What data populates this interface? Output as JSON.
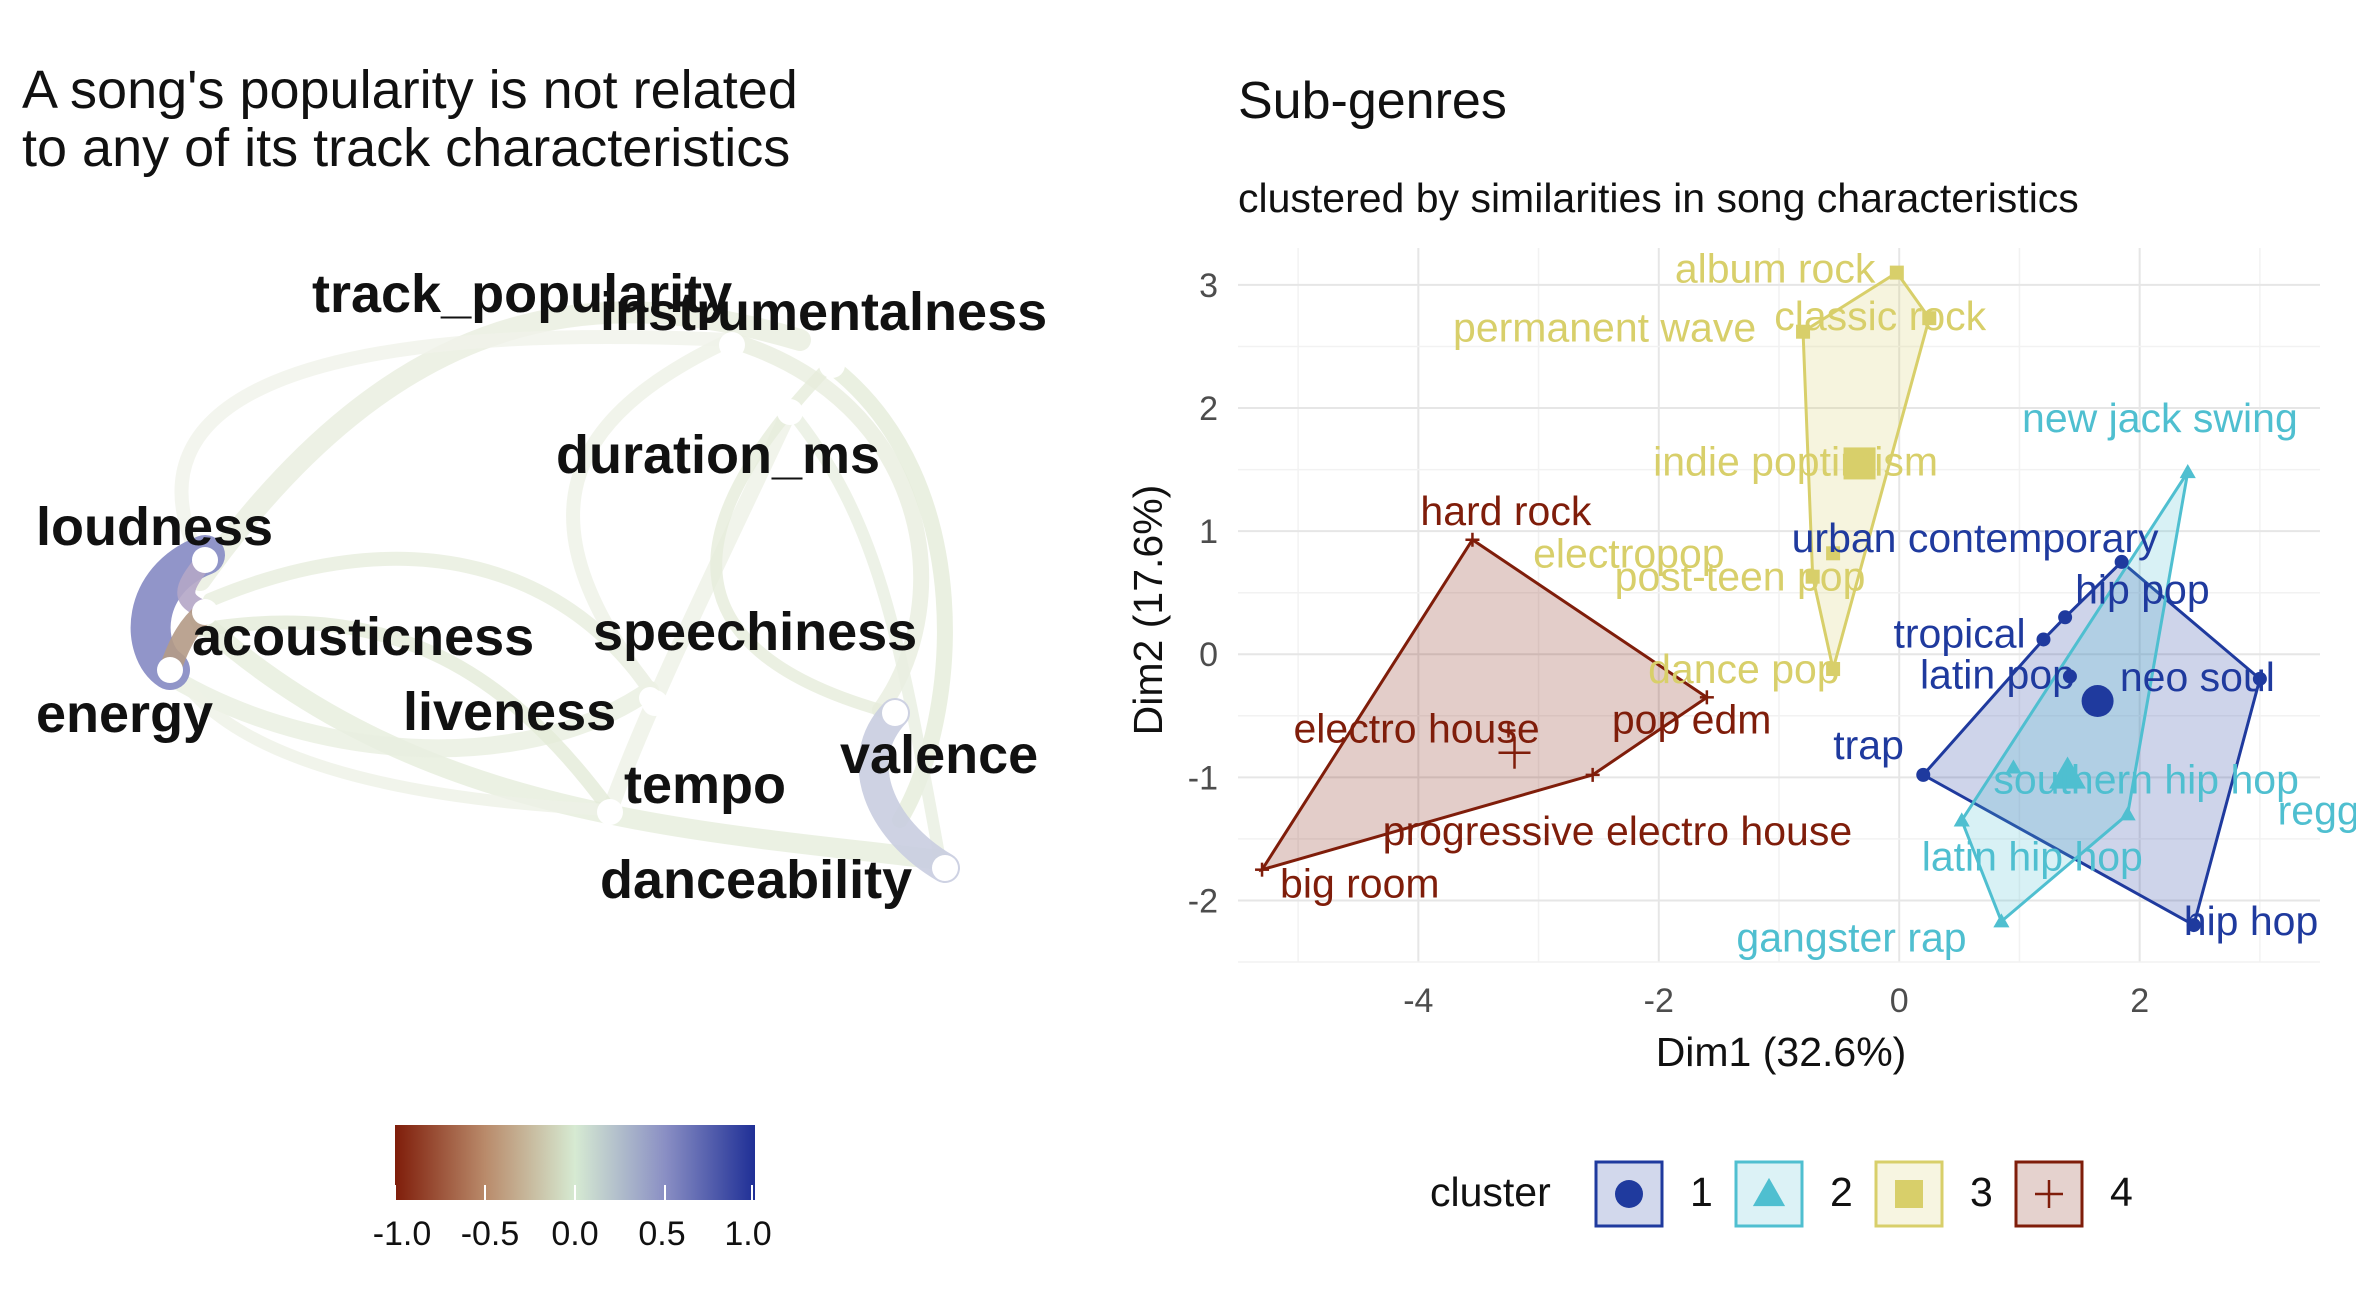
{
  "left_panel": {
    "title_line1": "A song's popularity is not related",
    "title_line2": "to any of its track characteristics",
    "colorbar_ticks": [
      "-1.0",
      "-0.5",
      "0.0",
      "0.5",
      "1.0"
    ],
    "colorbar_colors": [
      "#7f1d0a",
      "#b98a6a",
      "#d6ead2",
      "#8a8fc4",
      "#1f2f96"
    ]
  },
  "chart_data": [
    {
      "type": "network",
      "nodes": [
        "track_popularity",
        "instrumentalness",
        "duration_ms",
        "loudness",
        "acousticness",
        "energy",
        "speechiness",
        "liveness",
        "tempo",
        "valence",
        "danceability"
      ],
      "edges": [
        {
          "from": "loudness",
          "to": "energy",
          "correlation": 0.7
        },
        {
          "from": "loudness",
          "to": "acousticness",
          "correlation": -0.4
        },
        {
          "from": "energy",
          "to": "acousticness",
          "correlation": -0.5
        },
        {
          "from": "valence",
          "to": "danceability",
          "correlation": 0.3
        }
      ],
      "colorbar_range": [
        -1.0,
        1.0
      ]
    },
    {
      "type": "scatter",
      "title": "Sub-genres",
      "subtitle": "clustered by similarities in song characteristics",
      "xlabel": "Dim1 (32.6%)",
      "ylabel": "Dim2 (17.6%)",
      "xlim": [
        -5.5,
        3.5
      ],
      "ylim": [
        -2.5,
        3.3
      ],
      "x_ticks": [
        "-4",
        "-2",
        "0",
        "2"
      ],
      "y_ticks": [
        "-2",
        "-1",
        "0",
        "1",
        "2",
        "3"
      ],
      "grid": true,
      "legend_position": "bottom",
      "legend_title": "cluster",
      "clusters": [
        {
          "name": "1",
          "color": "#1f3a9e",
          "marker": "circle",
          "centroid": [
            1.65,
            -0.38
          ],
          "points": [
            {
              "label": "urban contemporary",
              "x": 1.85,
              "y": 0.75
            },
            {
              "label": "hip pop",
              "x": 1.38,
              "y": 0.3
            },
            {
              "label": "neo soul",
              "x": 3.0,
              "y": -0.2
            },
            {
              "label": "tropical",
              "x": 1.2,
              "y": 0.12
            },
            {
              "label": "latin pop",
              "x": 1.42,
              "y": -0.18
            },
            {
              "label": "trap",
              "x": 0.2,
              "y": -0.98
            },
            {
              "label": "hip hop",
              "x": 2.45,
              "y": -2.2
            }
          ]
        },
        {
          "name": "2",
          "color": "#4fbfd0",
          "marker": "triangle",
          "centroid": [
            1.4,
            -0.98
          ],
          "points": [
            {
              "label": "new jack swing",
              "x": 2.4,
              "y": 1.48
            },
            {
              "label": "southern hip hop",
              "x": 0.95,
              "y": -0.92
            },
            {
              "label": "latin hip hop",
              "x": 0.52,
              "y": -1.35
            },
            {
              "label": "reggaeton",
              "x": 1.9,
              "y": -1.3
            },
            {
              "label": "gangster rap",
              "x": 0.85,
              "y": -2.17
            }
          ]
        },
        {
          "name": "3",
          "color": "#d8cf6a",
          "marker": "square",
          "centroid": [
            -0.33,
            1.55
          ],
          "points": [
            {
              "label": "album rock",
              "x": -0.02,
              "y": 3.1
            },
            {
              "label": "classic rock",
              "x": 0.25,
              "y": 2.73
            },
            {
              "label": "permanent wave",
              "x": -0.8,
              "y": 2.62
            },
            {
              "label": "indie poptimism",
              "x": -0.3,
              "y": 1.55
            },
            {
              "label": "electropop",
              "x": -0.55,
              "y": 0.82
            },
            {
              "label": "post-teen pop",
              "x": -0.72,
              "y": 0.63
            },
            {
              "label": "dance pop",
              "x": -0.55,
              "y": -0.12
            }
          ]
        },
        {
          "name": "4",
          "color": "#7f1d0a",
          "marker": "cross",
          "centroid": [
            -3.2,
            -0.8
          ],
          "points": [
            {
              "label": "hard rock",
              "x": -3.55,
              "y": 0.93
            },
            {
              "label": "pop edm",
              "x": -1.6,
              "y": -0.35
            },
            {
              "label": "electro house",
              "x": -3.25,
              "y": -0.62
            },
            {
              "label": "progressive electro house",
              "x": -2.55,
              "y": -0.98
            },
            {
              "label": "big room",
              "x": -5.3,
              "y": -1.75
            }
          ]
        }
      ]
    }
  ]
}
